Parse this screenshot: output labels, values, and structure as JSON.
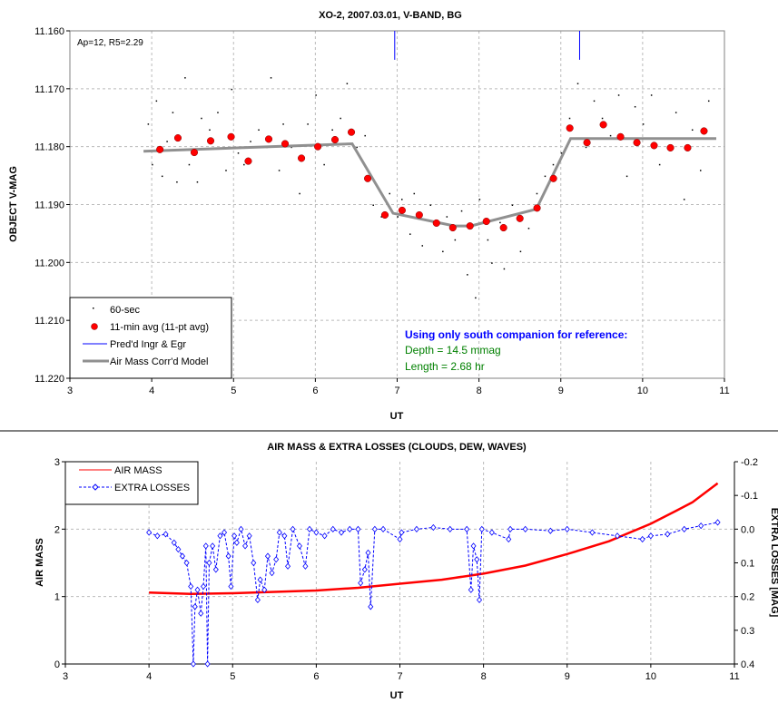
{
  "chart_data": [
    {
      "type": "scatter",
      "title": "XO-2, 2007.03.01, V-BAND, BG",
      "xlabel": "UT",
      "ylabel": "OBJECT V-MAG",
      "xlim": [
        3,
        11
      ],
      "ylim": [
        11.16,
        11.22
      ],
      "y_inverted": true,
      "xticks": [
        "3",
        "4",
        "5",
        "6",
        "7",
        "8",
        "9",
        "10",
        "11"
      ],
      "yticks": [
        "11.160",
        "11.170",
        "11.180",
        "11.190",
        "11.200",
        "11.210",
        "11.220"
      ],
      "grid": true,
      "legend_position": "bottom-left",
      "annotation_corner": "Ap=12, R5=2.29",
      "annotation": {
        "heading": "Using only south companion for reference:",
        "depth": "Depth = 14.5 mmag",
        "length": "Length = 2.68 hr"
      },
      "legend": [
        "60-sec",
        "11-min avg (11-pt avg)",
        "Pred'd Ingr & Egr",
        "Air Mass Corr'd Model"
      ],
      "series": [
        {
          "name": "60-sec",
          "x": [
            3.95,
            4.0,
            4.05,
            4.12,
            4.18,
            4.25,
            4.3,
            4.4,
            4.45,
            4.55,
            4.6,
            4.7,
            4.8,
            4.9,
            4.97,
            5.05,
            5.12,
            5.2,
            5.3,
            5.4,
            5.45,
            5.55,
            5.6,
            5.7,
            5.8,
            5.9,
            6.0,
            6.1,
            6.2,
            6.3,
            6.38,
            6.5,
            6.6,
            6.7,
            6.8,
            6.9,
            7.0,
            7.05,
            7.15,
            7.2,
            7.3,
            7.4,
            7.45,
            7.55,
            7.6,
            7.7,
            7.78,
            7.85,
            7.9,
            7.95,
            8.0,
            8.1,
            8.15,
            8.25,
            8.3,
            8.4,
            8.5,
            8.6,
            8.7,
            8.8,
            8.9,
            9.0,
            9.1,
            9.2,
            9.3,
            9.4,
            9.5,
            9.6,
            9.7,
            9.8,
            9.9,
            10.0,
            10.1,
            10.2,
            10.3,
            10.4,
            10.5,
            10.6,
            10.7,
            10.8
          ],
          "y": [
            11.176,
            11.183,
            11.172,
            11.185,
            11.179,
            11.174,
            11.186,
            11.168,
            11.183,
            11.186,
            11.175,
            11.177,
            11.174,
            11.184,
            11.17,
            11.181,
            11.183,
            11.179,
            11.177,
            11.18,
            11.168,
            11.184,
            11.176,
            11.18,
            11.188,
            11.176,
            11.171,
            11.183,
            11.177,
            11.175,
            11.169,
            11.18,
            11.178,
            11.19,
            11.192,
            11.188,
            11.192,
            11.189,
            11.195,
            11.188,
            11.197,
            11.19,
            11.193,
            11.198,
            11.192,
            11.196,
            11.191,
            11.202,
            11.194,
            11.206,
            11.189,
            11.196,
            11.2,
            11.193,
            11.201,
            11.19,
            11.198,
            11.194,
            11.188,
            11.185,
            11.183,
            11.181,
            11.175,
            11.169,
            11.18,
            11.172,
            11.175,
            11.178,
            11.171,
            11.185,
            11.173,
            11.176,
            11.171,
            11.183,
            11.18,
            11.174,
            11.189,
            11.177,
            11.184,
            11.172
          ]
        },
        {
          "name": "11-min avg (11-pt avg)",
          "x": [
            4.1,
            4.32,
            4.52,
            4.72,
            4.97,
            5.18,
            5.43,
            5.63,
            5.83,
            6.03,
            6.24,
            6.44,
            6.64,
            6.85,
            7.06,
            7.27,
            7.48,
            7.68,
            7.89,
            8.09,
            8.3,
            8.5,
            8.71,
            8.91,
            9.11,
            9.32,
            9.52,
            9.73,
            9.93,
            10.14,
            10.34,
            10.55,
            10.75
          ],
          "y": [
            11.1805,
            11.1785,
            11.181,
            11.179,
            11.1783,
            11.1825,
            11.1787,
            11.1795,
            11.182,
            11.18,
            11.1788,
            11.1775,
            11.1855,
            11.1918,
            11.191,
            11.1918,
            11.1932,
            11.194,
            11.1937,
            11.1929,
            11.194,
            11.1924,
            11.1906,
            11.1855,
            11.1768,
            11.1793,
            11.1762,
            11.1783,
            11.1793,
            11.1798,
            11.1802,
            11.1802,
            11.1773
          ]
        },
        {
          "name": "Pred'd Ingr & Egr",
          "x": [
            6.97,
            9.23
          ],
          "y_range": [
            11.16,
            11.165
          ]
        },
        {
          "name": "Air Mass Corr'd Model",
          "x": [
            3.9,
            6.45,
            6.95,
            7.7,
            7.9,
            8.7,
            9.12,
            10.9
          ],
          "y": [
            11.1808,
            11.1795,
            11.1915,
            11.1937,
            11.1937,
            11.1908,
            11.1786,
            11.1786
          ]
        }
      ]
    },
    {
      "type": "line",
      "title": "AIR MASS & EXTRA LOSSES (CLOUDS, DEW, WAVES)",
      "xlabel": "UT",
      "ylabel": "AIR MASS",
      "y2label": "EXTRA LOSSES [MAG]",
      "xlim": [
        3,
        11
      ],
      "ylim": [
        0,
        3
      ],
      "y2lim": [
        0.4,
        -0.2
      ],
      "xticks": [
        "3",
        "4",
        "5",
        "6",
        "7",
        "8",
        "9",
        "10",
        "11"
      ],
      "yticks": [
        "0",
        "1",
        "2",
        "3"
      ],
      "y2ticks": [
        "-0.2",
        "-0.1",
        "0.0",
        "0.1",
        "0.2",
        "0.3",
        "0.4"
      ],
      "grid": true,
      "legend_position": "top-left",
      "series": [
        {
          "name": "AIR MASS",
          "color": "#ff0000",
          "x": [
            4,
            4.5,
            5,
            5.5,
            6,
            6.5,
            7,
            7.5,
            8,
            8.5,
            9,
            9.5,
            10,
            10.3,
            10.5,
            10.8
          ],
          "y": [
            1.06,
            1.04,
            1.05,
            1.07,
            1.09,
            1.13,
            1.19,
            1.25,
            1.34,
            1.46,
            1.63,
            1.82,
            2.08,
            2.27,
            2.4,
            2.68
          ]
        },
        {
          "name": "EXTRA LOSSES",
          "color": "#0000ff",
          "x": [
            4,
            4.1,
            4.2,
            4.3,
            4.35,
            4.4,
            4.45,
            4.5,
            4.53,
            4.55,
            4.58,
            4.62,
            4.65,
            4.68,
            4.7,
            4.72,
            4.76,
            4.8,
            4.85,
            4.9,
            4.95,
            4.98,
            5.02,
            5.05,
            5.1,
            5.15,
            5.2,
            5.25,
            5.3,
            5.33,
            5.38,
            5.42,
            5.47,
            5.52,
            5.56,
            5.62,
            5.66,
            5.72,
            5.8,
            5.87,
            5.92,
            6.0,
            6.1,
            6.2,
            6.3,
            6.4,
            6.5,
            6.53,
            6.58,
            6.62,
            6.65,
            6.7,
            6.8,
            7.0,
            7.02,
            7.2,
            7.4,
            7.6,
            7.8,
            7.85,
            7.88,
            7.92,
            7.95,
            7.98,
            8.1,
            8.3,
            8.32,
            8.5,
            8.8,
            9.0,
            9.3,
            9.6,
            9.9,
            10.0,
            10.2,
            10.4,
            10.6,
            10.8
          ],
          "y": [
            0.01,
            0.02,
            0.015,
            0.04,
            0.06,
            0.08,
            0.1,
            0.17,
            0.4,
            0.23,
            0.18,
            0.25,
            0.17,
            0.05,
            0.4,
            0.1,
            0.05,
            0.12,
            0.02,
            0.01,
            0.08,
            0.17,
            0.02,
            0.04,
            0.0,
            0.05,
            0.02,
            0.1,
            0.21,
            0.15,
            0.18,
            0.08,
            0.13,
            0.09,
            0.01,
            0.02,
            0.11,
            0.0,
            0.05,
            0.11,
            0.0,
            0.01,
            0.02,
            0.0,
            0.01,
            0.0,
            0.0,
            0.16,
            0.12,
            0.07,
            0.23,
            0.0,
            0.0,
            0.03,
            0.01,
            0.0,
            -0.005,
            0.0,
            0.0,
            0.18,
            0.05,
            0.09,
            0.21,
            0.0,
            0.01,
            0.03,
            0.0,
            0.0,
            0.005,
            0.0,
            0.01,
            0.02,
            0.03,
            0.02,
            0.015,
            0.0,
            -0.01,
            -0.02
          ]
        }
      ]
    }
  ]
}
